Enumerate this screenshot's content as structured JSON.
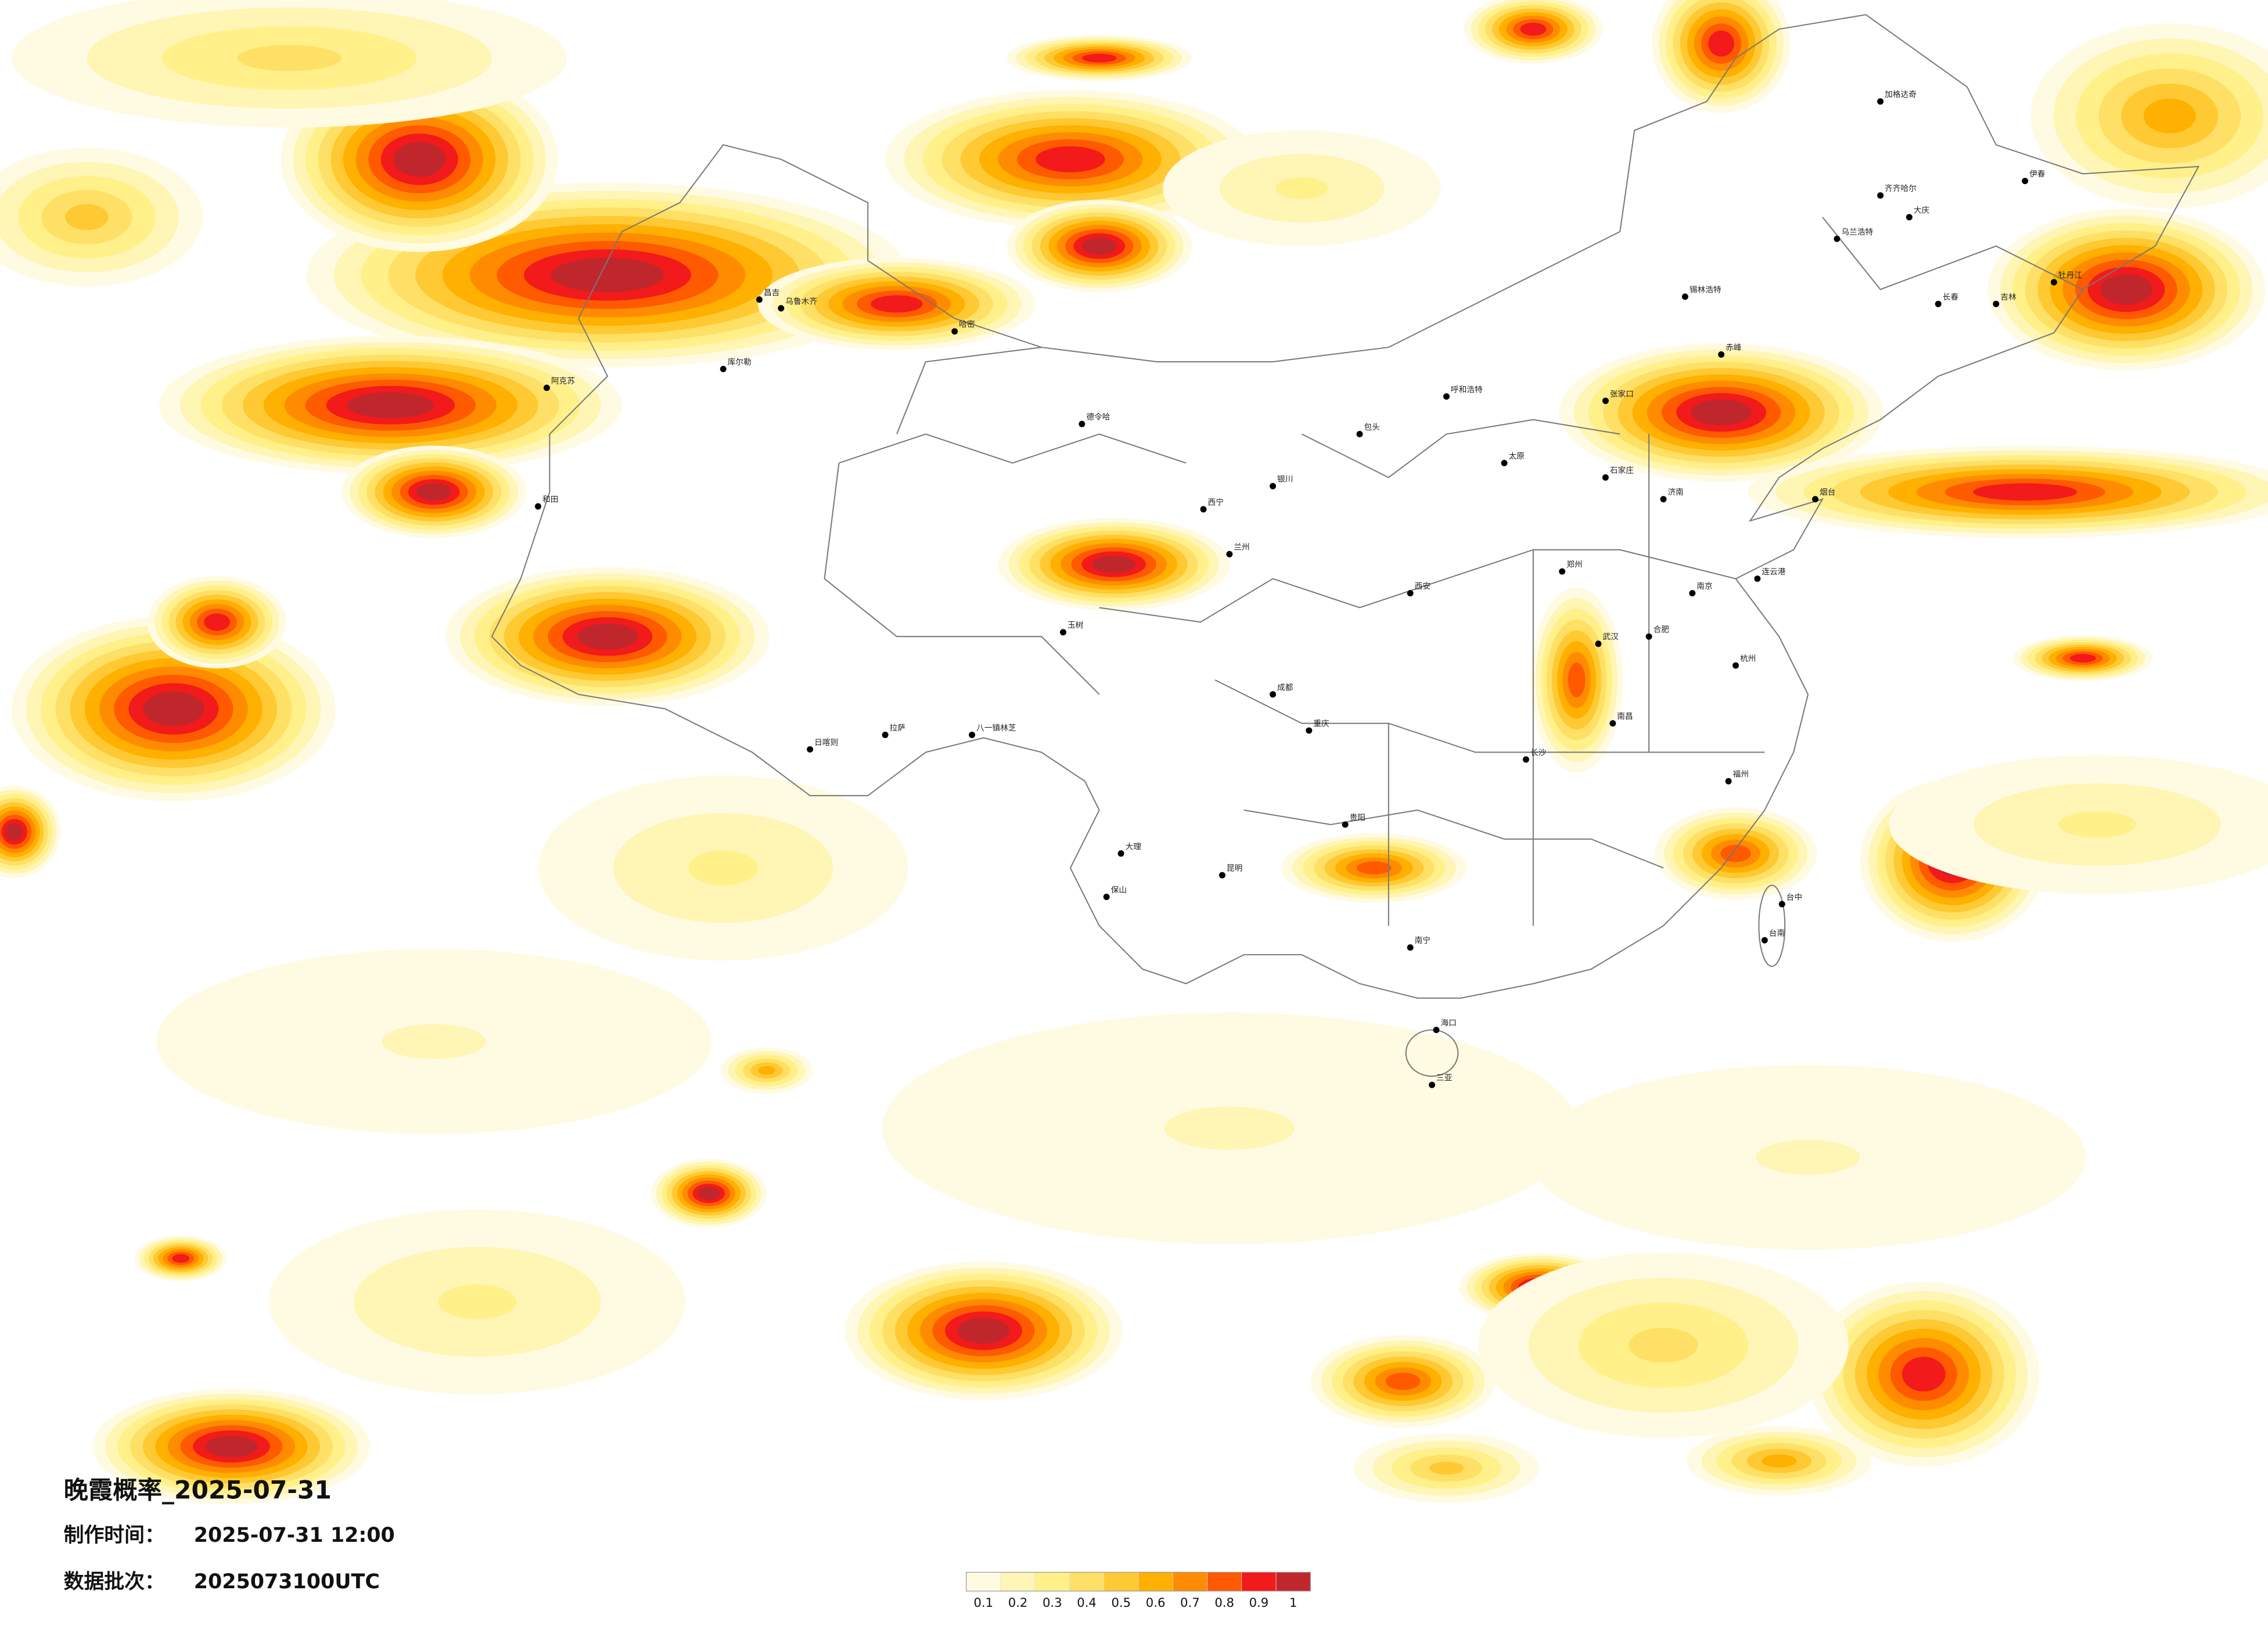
{
  "header": {
    "title": "晚霞概率_2025-07-31"
  },
  "meta": [
    {
      "label": "制作时间：",
      "value": "2025-07-31 12:00"
    },
    {
      "label": "数据批次：",
      "value": "2025073100UTC"
    }
  ],
  "legend": {
    "colors": [
      "#fffbe3",
      "#fff5b5",
      "#fff08a",
      "#ffe066",
      "#ffc933",
      "#ffb000",
      "#ff8c00",
      "#ff5a00",
      "#f21a1a",
      "#c0272d"
    ],
    "ticks": [
      0.1,
      0.2,
      0.3,
      0.4,
      0.5,
      0.6,
      0.7,
      0.8,
      0.9,
      1
    ]
  },
  "cities": [
    "昌吉",
    "乌鲁木齐",
    "哈密",
    "库尔勒",
    "阿克苏",
    "和田",
    "德令哈",
    "日喀则",
    "拉萨",
    "八一镇林芝",
    "玉树",
    "西宁",
    "兰州",
    "银川",
    "呼和浩特",
    "包头",
    "张家口",
    "石家庄",
    "太原",
    "济南",
    "郑州",
    "西安",
    "成都",
    "重庆",
    "贵阳",
    "昆明",
    "南宁",
    "长沙",
    "武汉",
    "南昌",
    "福州",
    "台中",
    "台南",
    "海口",
    "三亚",
    "杭州",
    "南京",
    "合肥",
    "长春",
    "吉林",
    "齐齐哈尔",
    "大庆",
    "伊春",
    "牡丹江",
    "加格达奇",
    "锡林浩特",
    "乌兰浩特",
    "烟台",
    "连云港",
    "大理",
    "保山",
    "赤峰"
  ]
}
